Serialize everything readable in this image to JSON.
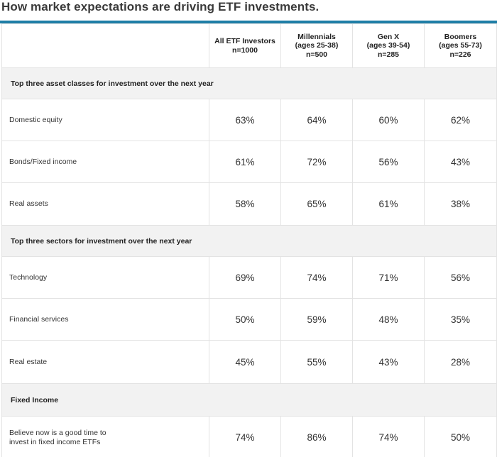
{
  "title": "How market expectations are driving ETF investments.",
  "columns": [
    {
      "line1": "All ETF Investors",
      "line2": "n=1000",
      "line3": ""
    },
    {
      "line1": "Millennials",
      "line2": "(ages 25-38)",
      "line3": "n=500"
    },
    {
      "line1": "Gen X",
      "line2": "(ages 39-54)",
      "line3": "n=285"
    },
    {
      "line1": "Boomers",
      "line2": "(ages 55-73)",
      "line3": "n=226"
    }
  ],
  "sections": [
    {
      "heading": "Top three asset classes for investment over the next year",
      "rows": [
        {
          "label": "Domestic equity",
          "values": [
            "63%",
            "64%",
            "60%",
            "62%"
          ]
        },
        {
          "label": "Bonds/Fixed income",
          "values": [
            "61%",
            "72%",
            "56%",
            "43%"
          ]
        },
        {
          "label": "Real assets",
          "values": [
            "58%",
            "65%",
            "61%",
            "38%"
          ]
        }
      ]
    },
    {
      "heading": "Top three sectors for investment over the next year",
      "rows": [
        {
          "label": "Technology",
          "values": [
            "69%",
            "74%",
            "71%",
            "56%"
          ]
        },
        {
          "label": "Financial services",
          "values": [
            "50%",
            "59%",
            "48%",
            "35%"
          ]
        },
        {
          "label": "Real estate",
          "values": [
            "45%",
            "55%",
            "43%",
            "28%"
          ]
        }
      ]
    },
    {
      "heading": "Fixed Income",
      "rows": [
        {
          "label_line1": "Believe now is a good time to",
          "label_line2": "invest in fixed income ETFs",
          "values": [
            "74%",
            "86%",
            "74%",
            "50%"
          ]
        }
      ]
    }
  ],
  "colors": {
    "accent_rule": "#1e7ea6",
    "section_bg": "#f2f2f2",
    "border": "#e3e3e3"
  }
}
